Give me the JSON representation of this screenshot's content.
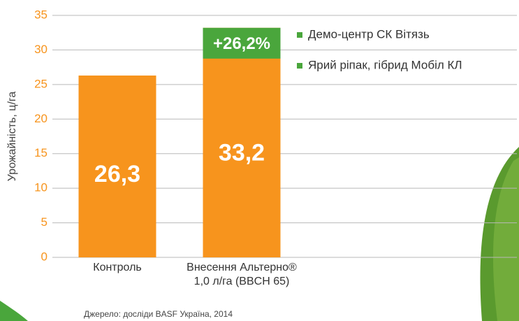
{
  "chart_data": {
    "type": "bar",
    "y_label": "Урожайність, ц/га",
    "categories": [
      "Контроль",
      "Внесення Альтерно®\n1,0 л/га (BBCH 65)"
    ],
    "values": [
      26.3,
      33.2
    ],
    "value_labels": [
      "26,3",
      "33,2"
    ],
    "color": "#f7941d",
    "increase": {
      "value": 26.2,
      "label": "+26,2%",
      "color": "#4aa63c"
    },
    "notes": [
      "Демо-центр СК Вітязь",
      "Ярий ріпак, гібрид Мобіл КЛ"
    ],
    "source": "Джерело: досліди BASF Україна, 2014",
    "ylim": [
      0,
      35
    ],
    "yticks": [
      0,
      5,
      10,
      15,
      20,
      25,
      30,
      35
    ],
    "grid": true
  }
}
